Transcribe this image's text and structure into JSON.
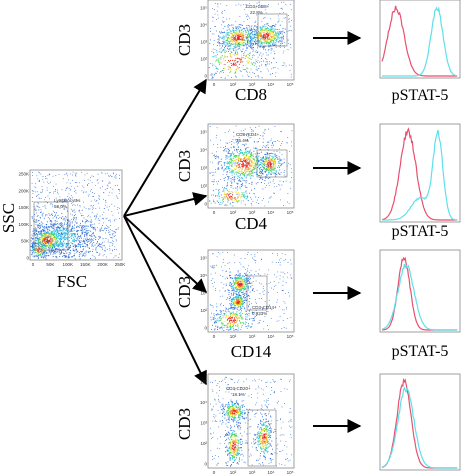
{
  "overview": {
    "y_label": "SSC",
    "x_label": "FSC",
    "y_ticks": [
      "250K",
      "200K",
      "150K",
      "100K",
      "50K",
      "0"
    ],
    "x_ticks": [
      "0",
      "50K",
      "100K",
      "150K",
      "200K",
      "250K"
    ],
    "gate": {
      "name": "Lymphocytes",
      "value": "58.0%"
    }
  },
  "log_ticks": [
    "10⁵",
    "10⁴",
    "10³",
    "10²",
    "0"
  ],
  "rows": [
    {
      "y_label": "CD3",
      "x_label": "CD8",
      "gate_name": "CD3+CD8+",
      "gate_value": "22.8%",
      "histogram_label": "pSTAT-5"
    },
    {
      "y_label": "CD3",
      "x_label": "CD4",
      "gate_name": "CD3+CD4+",
      "gate_value": "35.4%",
      "histogram_label": "pSTAT-5"
    },
    {
      "y_label": "CD3",
      "x_label": "CD14",
      "gate_name": "CD3-CD14+",
      "gate_value": "0.933%",
      "histogram_label": "pSTAT-5"
    },
    {
      "y_label": "CD3",
      "x_label": "",
      "gate_name": "CD3-CD20+",
      "gate_value": "18.1%",
      "histogram_label": ""
    }
  ],
  "colors": {
    "dot_blue": "#2f6fd6",
    "dot_cyan": "#32c8e6",
    "dot_green": "#4cd24a",
    "dot_yellow": "#f2e02a",
    "dot_orange": "#f08a1c",
    "dot_red": "#e0241c",
    "curve_red": "#e8506e",
    "curve_cyan": "#5fe0ea",
    "arrow": "#000000"
  }
}
